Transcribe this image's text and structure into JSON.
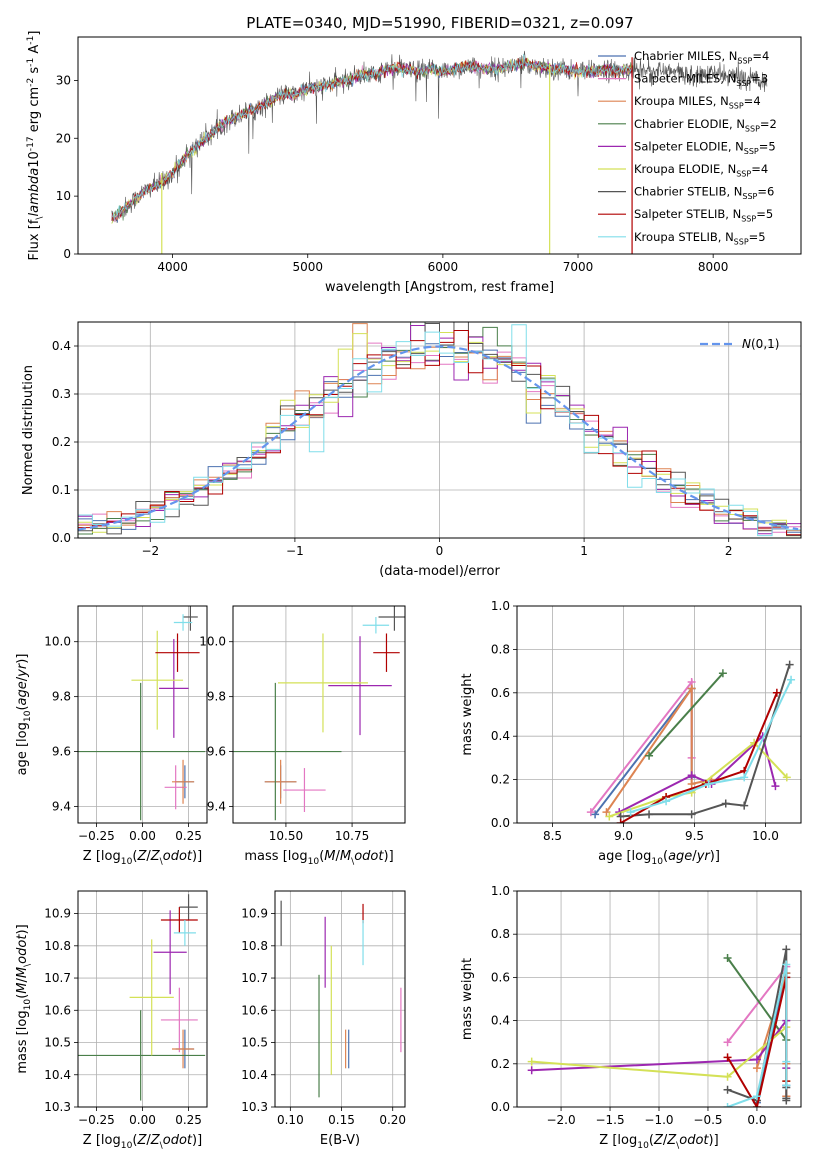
{
  "figure_title": "PLATE=0340, MJD=51990, FIBERID=0321, z=0.097",
  "colors": {
    "Chabrier MILES": "#4c72b0",
    "Salpeter MILES": "#e377c2",
    "Kroupa MILES": "#dd8452",
    "Chabrier ELODIE": "#4a7f4a",
    "Salpeter ELODIE": "#9c27b0",
    "Kroupa ELODIE": "#d4e157",
    "Chabrier STELIB": "#555555",
    "Salpeter STELIB": "#b00000",
    "Kroupa STELIB": "#80deea",
    "gauss": "#6495ed",
    "grid": "#b0b0b0"
  },
  "chart_data": [
    {
      "id": "spectrum",
      "type": "line",
      "xlabel": "wavelength [Angstrom, rest frame]",
      "ylabel": "Flux [f$_\\lambda$10$^{-17}$ erg cm$^{-2}$ s$^{-1}$ A$^{-1}$]",
      "xlim": [
        3300,
        8650
      ],
      "ylim": [
        0,
        37.5
      ],
      "xticks": [
        4000,
        5000,
        6000,
        7000,
        8000
      ],
      "yticks": [
        0,
        10,
        20,
        30
      ],
      "grid": false,
      "legend_position": "top-right",
      "legend": [
        "Chabrier MILES, N$_{SSP}$=4",
        "Salpeter MILES, N$_{SSP}$=3",
        "Kroupa MILES, N$_{SSP}$=4",
        "Chabrier ELODIE, N$_{SSP}$=2",
        "Salpeter ELODIE, N$_{SSP}$=5",
        "Kroupa ELODIE, N$_{SSP}$=4",
        "Chabrier STELIB, N$_{SSP}$=6",
        "Salpeter STELIB, N$_{SSP}$=5",
        "Kroupa STELIB, N$_{SSP}$=5"
      ],
      "data_series": {
        "name": "data",
        "x": [
          3550,
          3600,
          3700,
          3800,
          3900,
          4000,
          4100,
          4200,
          4300,
          4400,
          4500,
          4600,
          4700,
          4800,
          4900,
          5000,
          5100,
          5200,
          5300,
          5400,
          5500,
          5600,
          5700,
          5800,
          5900,
          6000,
          6100,
          6200,
          6300,
          6400,
          6500,
          6600,
          6700,
          6800,
          6900,
          7000,
          7100,
          7200,
          7300,
          7400,
          7500,
          7600,
          7700,
          7800,
          7900,
          8000,
          8100,
          8200,
          8300,
          8400
        ],
        "y": [
          6,
          7,
          9,
          11,
          12,
          14,
          17,
          19,
          21,
          23,
          24,
          25,
          26,
          27.5,
          27.5,
          28.5,
          29,
          29.5,
          30,
          31,
          31,
          32,
          32,
          31.5,
          32,
          31.5,
          32,
          32.5,
          32,
          32,
          32.5,
          33,
          32.5,
          32,
          32,
          31.5,
          31.5,
          32,
          31.5,
          32,
          32,
          31.5,
          31.5,
          31,
          31,
          31,
          31,
          30.5,
          30.5,
          30
        ]
      },
      "model_wavelength_max": 7400,
      "spikes": [
        {
          "x": 3920,
          "y0": 0,
          "y1": 14,
          "series": "Kroupa ELODIE"
        },
        {
          "x": 6790,
          "y0": 0,
          "y1": 33,
          "series": "Kroupa ELODIE"
        },
        {
          "x": 7400,
          "y0": 0,
          "y1": 34,
          "series": "Salpeter STELIB"
        }
      ]
    },
    {
      "id": "residuals",
      "type": "step",
      "xlabel": "(data-model)/error",
      "ylabel": "Normed distribution",
      "xlim": [
        -2.5,
        2.5
      ],
      "ylim": [
        0,
        0.45
      ],
      "xticks": [
        -2,
        -1,
        0,
        1,
        2
      ],
      "yticks": [
        0.0,
        0.1,
        0.2,
        0.3,
        0.4
      ],
      "grid": true,
      "legend_position": "top-right",
      "legend": [
        "$\\mathcal{N}(0,1)$"
      ],
      "bin_width": 0.1
    },
    {
      "id": "age_vs_Z",
      "type": "errorbar",
      "xlabel": "Z [log$_{10}$($Z/Z_\\odot$)]",
      "ylabel": "age  [log$_{10}$($age/yr$)]",
      "xlim": [
        -0.35,
        0.35
      ],
      "ylim": [
        9.34,
        10.13
      ],
      "xticks": [
        -0.25,
        0.0,
        0.25
      ],
      "yticks": [
        9.4,
        9.6,
        9.8,
        10.0
      ],
      "grid": true,
      "points": [
        {
          "series": "Chabrier MILES",
          "x": 0.23,
          "xerr": 0.05,
          "y": 9.49,
          "yerr": 0.06
        },
        {
          "series": "Salpeter MILES",
          "x": 0.18,
          "xerr": 0.06,
          "y": 9.47,
          "yerr": 0.08
        },
        {
          "series": "Kroupa MILES",
          "x": 0.22,
          "xerr": 0.06,
          "y": 9.49,
          "yerr": 0.08
        },
        {
          "series": "Chabrier ELODIE",
          "x": -0.01,
          "xerr": 0.35,
          "y": 9.6,
          "yerr": 0.25
        },
        {
          "series": "Salpeter ELODIE",
          "x": 0.17,
          "xerr": 0.08,
          "y": 9.83,
          "yerr": 0.18
        },
        {
          "series": "Kroupa ELODIE",
          "x": 0.08,
          "xerr": 0.14,
          "y": 9.86,
          "yerr": 0.18
        },
        {
          "series": "Chabrier STELIB",
          "x": 0.26,
          "xerr": 0.04,
          "y": 10.09,
          "yerr": 0.05
        },
        {
          "series": "Salpeter STELIB",
          "x": 0.19,
          "xerr": 0.12,
          "y": 9.96,
          "yerr": 0.07
        },
        {
          "series": "Kroupa STELIB",
          "x": 0.22,
          "xerr": 0.05,
          "y": 10.07,
          "yerr": 0.03
        }
      ]
    },
    {
      "id": "age_vs_mass",
      "type": "errorbar",
      "xlabel": "mass [log$_{10}$($M/M_\\odot$)]",
      "ylabel": "",
      "xlim": [
        10.3,
        10.95
      ],
      "ylim": [
        9.34,
        10.13
      ],
      "xticks": [
        10.5,
        10.75
      ],
      "yticks": [
        9.4,
        9.6,
        9.8,
        10.0
      ],
      "grid": true,
      "points": [
        {
          "series": "Chabrier MILES",
          "x": 10.48,
          "xerr": 0.06,
          "y": 9.49,
          "yerr": 0.06
        },
        {
          "series": "Salpeter MILES",
          "x": 10.57,
          "xerr": 0.08,
          "y": 9.46,
          "yerr": 0.08
        },
        {
          "series": "Kroupa MILES",
          "x": 10.48,
          "xerr": 0.06,
          "y": 9.49,
          "yerr": 0.08
        },
        {
          "series": "Chabrier ELODIE",
          "x": 10.46,
          "xerr": 0.25,
          "y": 9.6,
          "yerr": 0.25
        },
        {
          "series": "Salpeter ELODIE",
          "x": 10.78,
          "xerr": 0.12,
          "y": 9.84,
          "yerr": 0.18
        },
        {
          "series": "Kroupa ELODIE",
          "x": 10.64,
          "xerr": 0.17,
          "y": 9.85,
          "yerr": 0.18
        },
        {
          "series": "Chabrier STELIB",
          "x": 10.91,
          "xerr": 0.06,
          "y": 10.09,
          "yerr": 0.05
        },
        {
          "series": "Salpeter STELIB",
          "x": 10.88,
          "xerr": 0.05,
          "y": 9.96,
          "yerr": 0.07
        },
        {
          "series": "Kroupa STELIB",
          "x": 10.84,
          "xerr": 0.05,
          "y": 10.06,
          "yerr": 0.03
        }
      ]
    },
    {
      "id": "weight_vs_age",
      "type": "line",
      "xlabel": "age  [log$_{10}$($age/yr$)]",
      "ylabel": "mass weight",
      "xlim": [
        8.25,
        10.25
      ],
      "ylim": [
        0,
        1.0
      ],
      "xticks": [
        8.5,
        9.0,
        9.5,
        10.0
      ],
      "yticks": [
        0.0,
        0.2,
        0.4,
        0.6,
        0.8,
        1.0
      ],
      "grid": true,
      "series": [
        {
          "series": "Chabrier MILES",
          "x": [
            8.8,
            9.48,
            9.48
          ],
          "y": [
            0.04,
            0.62,
            0.21
          ]
        },
        {
          "series": "Salpeter MILES",
          "x": [
            8.77,
            9.48,
            9.48
          ],
          "y": [
            0.05,
            0.65,
            0.3
          ]
        },
        {
          "series": "Kroupa MILES",
          "x": [
            8.88,
            9.48,
            9.48,
            9.62
          ],
          "y": [
            0.05,
            0.62,
            0.18,
            0.2
          ]
        },
        {
          "series": "Chabrier ELODIE",
          "x": [
            9.18,
            9.7
          ],
          "y": [
            0.31,
            0.69
          ]
        },
        {
          "series": "Salpeter ELODIE",
          "x": [
            8.97,
            9.48,
            9.62,
            9.98,
            10.07
          ],
          "y": [
            0.05,
            0.22,
            0.18,
            0.4,
            0.17
          ]
        },
        {
          "series": "Kroupa ELODIE",
          "x": [
            8.9,
            9.3,
            9.48,
            9.92,
            10.15
          ],
          "y": [
            0.03,
            0.12,
            0.14,
            0.37,
            0.21
          ]
        },
        {
          "series": "Chabrier STELIB",
          "x": [
            8.98,
            9.18,
            9.48,
            9.72,
            9.85,
            10.17
          ],
          "y": [
            0.03,
            0.04,
            0.04,
            0.09,
            0.08,
            0.73
          ]
        },
        {
          "series": "Salpeter STELIB",
          "x": [
            8.98,
            9.3,
            9.58,
            9.85,
            10.08
          ],
          "y": [
            0.0,
            0.12,
            0.18,
            0.24,
            0.6
          ]
        },
        {
          "series": "Kroupa STELIB",
          "x": [
            9.05,
            9.3,
            9.6,
            9.85,
            10.18
          ],
          "y": [
            0.05,
            0.1,
            0.18,
            0.21,
            0.66
          ]
        }
      ]
    },
    {
      "id": "mass_vs_Z",
      "type": "errorbar",
      "xlabel": "Z [log$_{10}$($Z/Z_\\odot$)]",
      "ylabel": "mass [log$_{10}$($M/M_\\odot$)]",
      "xlim": [
        -0.35,
        0.35
      ],
      "ylim": [
        10.3,
        10.97
      ],
      "xticks": [
        -0.25,
        0.0,
        0.25
      ],
      "yticks": [
        10.3,
        10.4,
        10.5,
        10.6,
        10.7,
        10.8,
        10.9
      ],
      "grid": true,
      "points": [
        {
          "series": "Chabrier MILES",
          "x": 0.23,
          "xerr": 0.05,
          "y": 10.48,
          "yerr": 0.06
        },
        {
          "series": "Salpeter MILES",
          "x": 0.2,
          "xerr": 0.1,
          "y": 10.57,
          "yerr": 0.1
        },
        {
          "series": "Kroupa MILES",
          "x": 0.22,
          "xerr": 0.06,
          "y": 10.48,
          "yerr": 0.06
        },
        {
          "series": "Chabrier ELODIE",
          "x": -0.01,
          "xerr": 0.35,
          "y": 10.46,
          "yerr": 0.14
        },
        {
          "series": "Salpeter ELODIE",
          "x": 0.15,
          "xerr": 0.09,
          "y": 10.78,
          "yerr": 0.13
        },
        {
          "series": "Kroupa ELODIE",
          "x": 0.05,
          "xerr": 0.12,
          "y": 10.64,
          "yerr": 0.18
        },
        {
          "series": "Chabrier STELIB",
          "x": 0.25,
          "xerr": 0.05,
          "y": 10.92,
          "yerr": 0.04
        },
        {
          "series": "Salpeter STELIB",
          "x": 0.2,
          "xerr": 0.1,
          "y": 10.88,
          "yerr": 0.04
        },
        {
          "series": "Kroupa STELIB",
          "x": 0.23,
          "xerr": 0.06,
          "y": 10.84,
          "yerr": 0.04
        }
      ]
    },
    {
      "id": "mass_vs_ebv",
      "type": "errorbar",
      "xlabel": "E(B-V)",
      "ylabel": "",
      "xlim": [
        0.085,
        0.212
      ],
      "ylim": [
        10.3,
        10.97
      ],
      "xticks": [
        0.1,
        0.15,
        0.2
      ],
      "yticks": [
        10.3,
        10.4,
        10.5,
        10.6,
        10.7,
        10.8,
        10.9
      ],
      "grid": true,
      "points": [
        {
          "series": "Chabrier MILES",
          "x": 0.157,
          "y": 10.48,
          "yerr": 0.06
        },
        {
          "series": "Salpeter MILES",
          "x": 0.208,
          "y": 10.57,
          "yerr": 0.1
        },
        {
          "series": "Kroupa MILES",
          "x": 0.154,
          "y": 10.48,
          "yerr": 0.06
        },
        {
          "series": "Chabrier ELODIE",
          "x": 0.128,
          "y": 10.52,
          "yerr": 0.19
        },
        {
          "series": "Salpeter ELODIE",
          "x": 0.134,
          "y": 10.78,
          "yerr": 0.11
        },
        {
          "series": "Kroupa ELODIE",
          "x": 0.14,
          "y": 10.6,
          "yerr": 0.2
        },
        {
          "series": "Chabrier STELIB",
          "x": 0.091,
          "y": 10.87,
          "yerr": 0.07
        },
        {
          "series": "Salpeter STELIB",
          "x": 0.171,
          "y": 10.9,
          "yerr": 0.03
        },
        {
          "series": "Kroupa STELIB",
          "x": 0.171,
          "y": 10.81,
          "yerr": 0.07
        }
      ]
    },
    {
      "id": "weight_vs_Z",
      "type": "line",
      "xlabel": "Z [log$_{10}$($Z/Z_\\odot$)]",
      "ylabel": "mass weight",
      "xlim": [
        -2.45,
        0.45
      ],
      "ylim": [
        0,
        1.0
      ],
      "xticks": [
        -2.0,
        -1.5,
        -1.0,
        -0.5,
        0.0
      ],
      "yticks": [
        0.0,
        0.2,
        0.4,
        0.6,
        0.8,
        1.0
      ],
      "grid": true,
      "series": [
        {
          "series": "Chabrier MILES",
          "x": [
            0.0,
            0.3,
            0.3
          ],
          "y": [
            0.02,
            0.62,
            0.1
          ]
        },
        {
          "series": "Salpeter MILES",
          "x": [
            -0.3,
            0.3,
            0.3
          ],
          "y": [
            0.3,
            0.65,
            0.05
          ]
        },
        {
          "series": "Kroupa MILES",
          "x": [
            0.0,
            0.3,
            0.3,
            0.3
          ],
          "y": [
            0.18,
            0.62,
            0.2,
            0.05
          ]
        },
        {
          "series": "Chabrier ELODIE",
          "x": [
            -0.3,
            0.3
          ],
          "y": [
            0.69,
            0.31
          ]
        },
        {
          "series": "Salpeter ELODIE",
          "x": [
            -2.3,
            0.0,
            0.3,
            0.3
          ],
          "y": [
            0.17,
            0.22,
            0.4,
            0.18
          ]
        },
        {
          "series": "Kroupa ELODIE",
          "x": [
            -2.3,
            -0.3,
            0.3,
            0.3
          ],
          "y": [
            0.21,
            0.14,
            0.37,
            0.12
          ]
        },
        {
          "series": "Chabrier STELIB",
          "x": [
            -0.3,
            0.0,
            0.3,
            0.3,
            0.3,
            0.3
          ],
          "y": [
            0.08,
            0.03,
            0.73,
            0.09,
            0.04,
            0.03
          ]
        },
        {
          "series": "Salpeter STELIB",
          "x": [
            -0.3,
            0.0,
            0.3,
            0.3
          ],
          "y": [
            0.23,
            0.0,
            0.6,
            0.12
          ]
        },
        {
          "series": "Kroupa STELIB",
          "x": [
            -0.3,
            0.0,
            0.3,
            0.3,
            0.3
          ],
          "y": [
            0.0,
            0.05,
            0.66,
            0.21,
            0.1
          ]
        }
      ]
    }
  ]
}
